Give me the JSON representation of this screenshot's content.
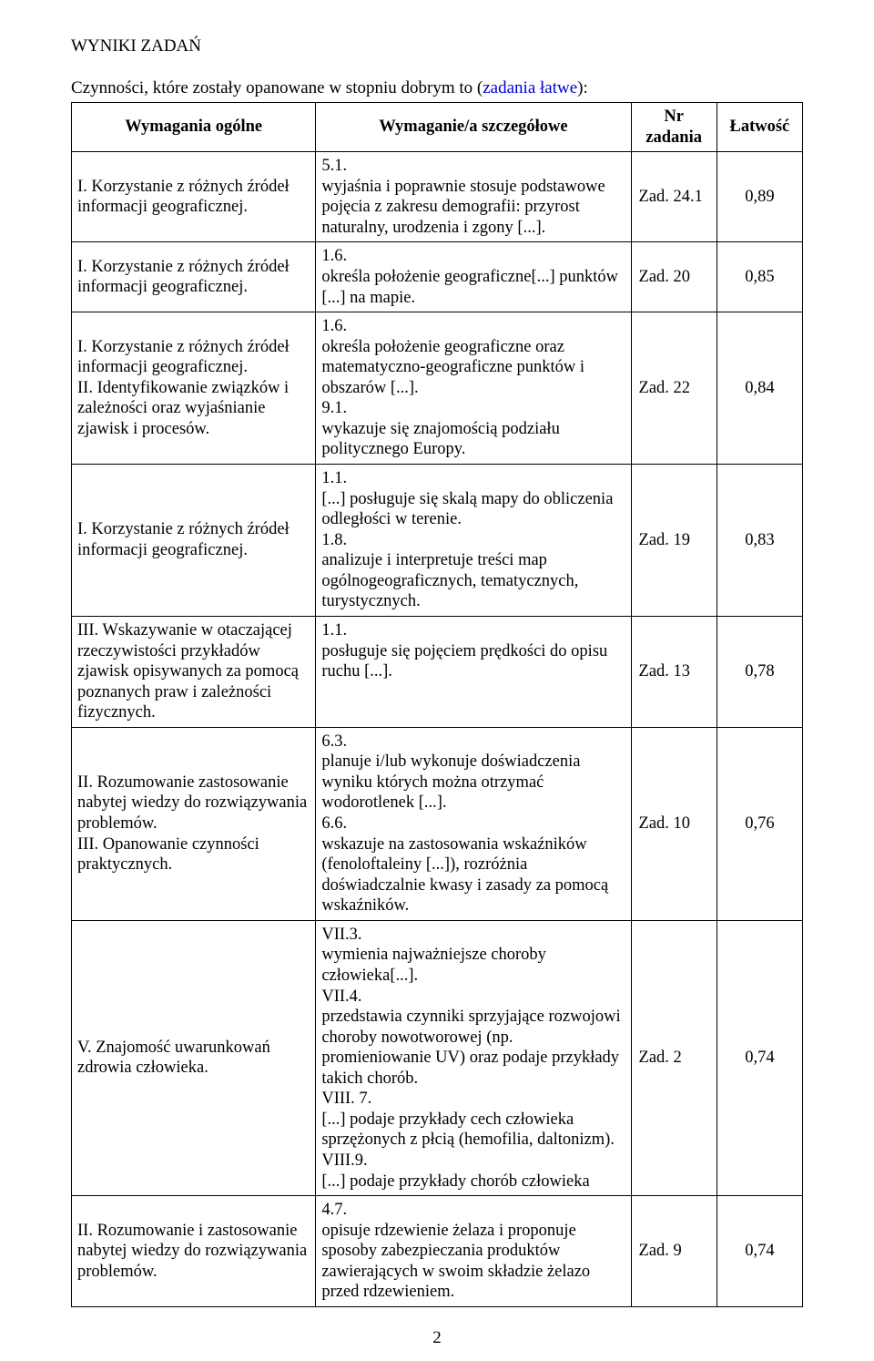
{
  "heading": "WYNIKI ZADAŃ",
  "intro_prefix": "Czynności, które zostały opanowane w stopniu dobrym to (",
  "intro_colored": "zadania łatwe",
  "intro_suffix": "):",
  "headers": {
    "col1": "Wymagania ogólne",
    "col2": "Wymaganie/a szczegółowe",
    "col3": "Nr zadania",
    "col4": "Łatwość"
  },
  "rows": [
    {
      "general": "I. Korzystanie z różnych źródeł informacji geograficznej.",
      "detail": "5.1.\nwyjaśnia i poprawnie stosuje podstawowe pojęcia z zakresu demografii: przyrost naturalny, urodzenia i zgony [...].",
      "num": "Zad. 24.1",
      "ease": "0,89"
    },
    {
      "general": "I. Korzystanie z różnych źródeł informacji geograficznej.",
      "detail": "1.6.\nokreśla położenie geograficzne[...] punktów [...] na mapie.",
      "num": "Zad. 20",
      "ease": "0,85"
    },
    {
      "general": "I. Korzystanie z różnych źródeł informacji geograficznej.\nII. Identyfikowanie związków i zależności oraz wyjaśnianie zjawisk i procesów.",
      "detail": "1.6.\nokreśla położenie geograficzne oraz matematyczno-geograficzne punktów i obszarów [...].\n9.1.\nwykazuje się znajomością podziału politycznego Europy.",
      "num": "Zad. 22",
      "ease": "0,84"
    },
    {
      "general": "I. Korzystanie z różnych źródeł informacji geograficznej.",
      "detail": "1.1.\n[...] posługuje się skalą mapy do obliczenia odległości w terenie.\n1.8.\nanalizuje i interpretuje treści map ogólnogeograficznych, tematycznych, turystycznych.",
      "num": "Zad. 19",
      "ease": "0,83"
    },
    {
      "general": "III. Wskazywanie w otaczającej rzeczywistości przykładów zjawisk opisywanych za pomocą poznanych praw i zależności fizycznych.",
      "detail": "1.1.\nposługuje się pojęciem prędkości do opisu ruchu [...].",
      "num": "Zad. 13",
      "ease": "0,78"
    },
    {
      "general": "II. Rozumowanie zastosowanie nabytej wiedzy do rozwiązywania problemów.\nIII. Opanowanie czynności praktycznych.",
      "detail": "6.3.\nplanuje i/lub wykonuje doświadczenia wyniku których można otrzymać wodorotlenek [...].\n6.6.\nwskazuje na zastosowania wskaźników (fenoloftaleiny [...]), rozróżnia doświadczalnie kwasy i zasady za pomocą wskaźników.",
      "num": "Zad. 10",
      "ease": "0,76"
    },
    {
      "general": "V. Znajomość uwarunkowań zdrowia człowieka.",
      "detail": "VII.3.\nwymienia najważniejsze choroby człowieka[...].\nVII.4.\nprzedstawia czynniki sprzyjające rozwojowi choroby nowotworowej (np. promieniowanie UV) oraz podaje przykłady takich chorób.\nVIII. 7.\n[...] podaje przykłady cech człowieka sprzężonych z płcią (hemofilia, daltonizm).\nVIII.9.\n[...] podaje przykłady chorób człowieka",
      "num": "Zad. 2",
      "ease": "0,74"
    },
    {
      "general": "II. Rozumowanie i zastosowanie nabytej wiedzy do rozwiązywania problemów.",
      "detail": "4.7.\nopisuje rdzewienie żelaza i proponuje sposoby zabezpieczania produktów zawierających w swoim składzie żelazo przed rdzewieniem.",
      "num": "Zad. 9",
      "ease": "0,74"
    }
  ],
  "page_number": "2"
}
